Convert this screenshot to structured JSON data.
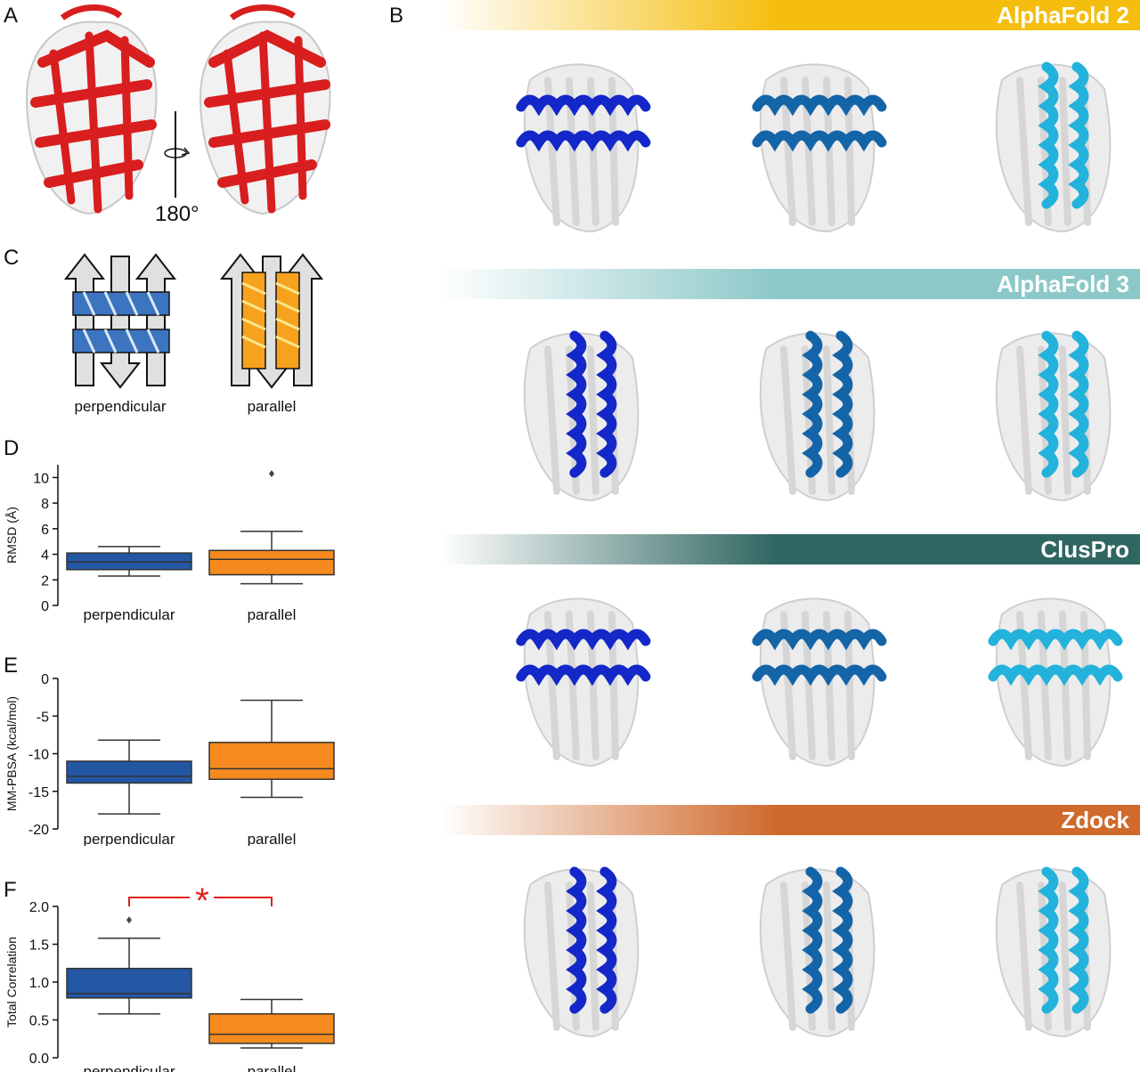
{
  "panels": {
    "a": {
      "letter": "A",
      "rotation_label": "180°"
    },
    "b": {
      "letter": "B"
    },
    "c": {
      "letter": "C",
      "labels": [
        "perpendicular",
        "parallel"
      ]
    },
    "d": {
      "letter": "D"
    },
    "e": {
      "letter": "E"
    },
    "f": {
      "letter": "F"
    }
  },
  "methods": [
    {
      "name": "AlphaFold 2",
      "color": "#F5BE0E"
    },
    {
      "name": "AlphaFold 3",
      "color": "#8CC8C8"
    },
    {
      "name": "ClusPro",
      "color": "#2F6661"
    },
    {
      "name": "Zdock",
      "color": "#CF6A2C"
    }
  ],
  "helix_colors": [
    "#1427C8",
    "#1464A8",
    "#22B2DC"
  ],
  "colors": {
    "perpendicular": "#2457A3",
    "parallel": "#F68A1E",
    "significance": "#E0221B"
  },
  "significance_mark": "*",
  "chart_data": [
    {
      "type": "box",
      "panel": "D",
      "ylabel": "RMSD (Å)",
      "ylim": [
        0,
        11
      ],
      "yticks": [
        0,
        2,
        4,
        6,
        8,
        10
      ],
      "categories": [
        "perpendicular",
        "parallel"
      ],
      "boxes": [
        {
          "name": "perpendicular",
          "whisker_low": 2.3,
          "q1": 2.8,
          "median": 3.4,
          "q3": 4.1,
          "whisker_high": 4.6,
          "outliers": []
        },
        {
          "name": "parallel",
          "whisker_low": 1.7,
          "q1": 2.4,
          "median": 3.6,
          "q3": 4.3,
          "whisker_high": 5.8,
          "outliers": [
            10.3
          ]
        }
      ]
    },
    {
      "type": "box",
      "panel": "E",
      "ylabel": "MM-PBSA (kcal/mol)",
      "ylim": [
        -20,
        0
      ],
      "yticks": [
        0,
        -5,
        -10,
        -15,
        -20
      ],
      "categories": [
        "perpendicular",
        "parallel"
      ],
      "boxes": [
        {
          "name": "perpendicular",
          "whisker_low": -18.0,
          "q1": -13.9,
          "median": -13.0,
          "q3": -11.0,
          "whisker_high": -8.2,
          "outliers": []
        },
        {
          "name": "parallel",
          "whisker_low": -15.8,
          "q1": -13.4,
          "median": -12.0,
          "q3": -8.5,
          "whisker_high": -2.9,
          "outliers": []
        }
      ]
    },
    {
      "type": "box",
      "panel": "F",
      "ylabel": "Total Correlation",
      "ylim": [
        0,
        2
      ],
      "yticks": [
        0.0,
        0.5,
        1.0,
        1.5,
        2.0
      ],
      "tick_labels": [
        "0.0",
        "0.5",
        "1.0",
        "1.5",
        "2.0"
      ],
      "categories": [
        "perpendicular",
        "parallel"
      ],
      "boxes": [
        {
          "name": "perpendicular",
          "whisker_low": 0.58,
          "q1": 0.79,
          "median": 0.85,
          "q3": 1.18,
          "whisker_high": 1.58,
          "outliers": [
            1.82
          ]
        },
        {
          "name": "parallel",
          "whisker_low": 0.13,
          "q1": 0.19,
          "median": 0.31,
          "q3": 0.58,
          "whisker_high": 0.77,
          "outliers": []
        }
      ]
    }
  ]
}
